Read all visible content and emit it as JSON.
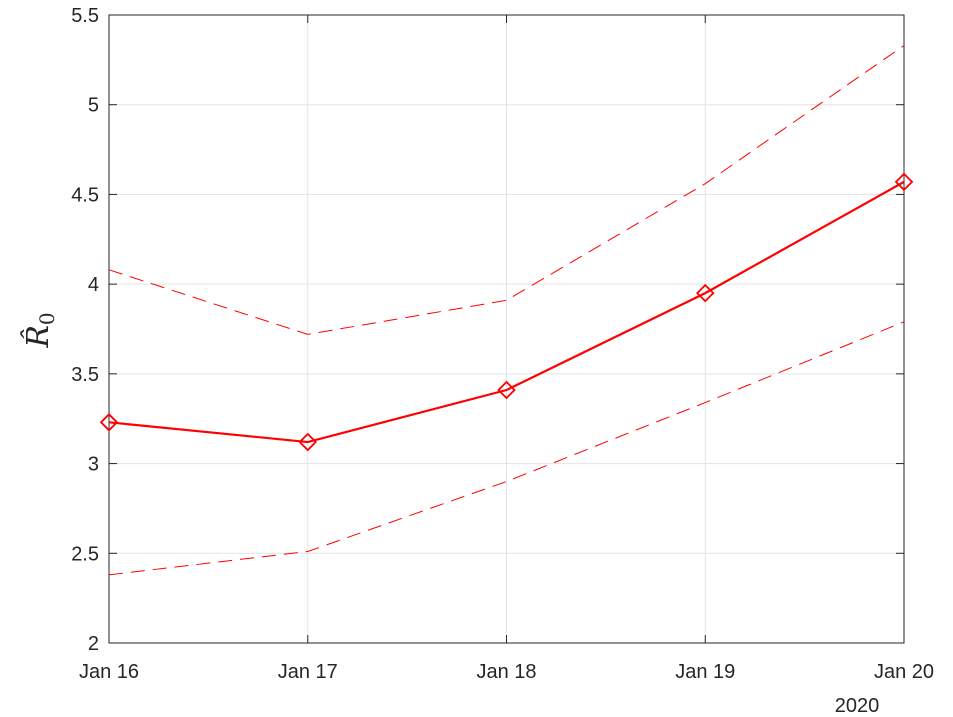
{
  "chart_data": {
    "type": "line",
    "categories": [
      "Jan 16",
      "Jan 17",
      "Jan 18",
      "Jan 19",
      "Jan 20"
    ],
    "x_secondary_label": "2020",
    "ylabel": "R̂",
    "ylabel_subscript": "0",
    "ylim": [
      2,
      5.5
    ],
    "yticks": [
      "2",
      "2.5",
      "3",
      "3.5",
      "4",
      "4.5",
      "5",
      "5.5"
    ],
    "grid": true,
    "series": [
      {
        "values": [
          3.23,
          3.12,
          3.41,
          3.95,
          4.57
        ],
        "style": "solid",
        "marker": "diamond",
        "color": "#ff0000"
      },
      {
        "values": [
          4.08,
          3.72,
          3.91,
          4.56,
          5.33
        ],
        "style": "dashed",
        "marker": "none",
        "color": "#ff0000"
      },
      {
        "values": [
          2.38,
          2.51,
          2.9,
          3.34,
          3.79
        ],
        "style": "dashed",
        "marker": "none",
        "color": "#ff0000"
      }
    ]
  }
}
